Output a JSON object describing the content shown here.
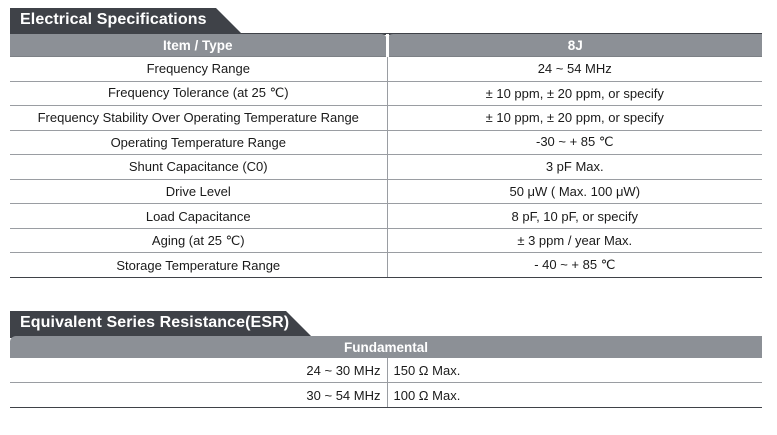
{
  "electrical_specifications": {
    "title": "Electrical Specifications",
    "header": {
      "item_type": "Item / Type",
      "model": "8J"
    },
    "rows": [
      {
        "item": "Frequency Range",
        "value": "24 ~ 54 MHz"
      },
      {
        "item": "Frequency Tolerance (at 25 ℃)",
        "value": "± 10 ppm, ± 20 ppm, or specify"
      },
      {
        "item": "Frequency Stability Over Operating Temperature Range",
        "value": "± 10 ppm, ± 20 ppm, or specify"
      },
      {
        "item": "Operating Temperature Range",
        "value": "-30 ~ + 85 ℃"
      },
      {
        "item": "Shunt Capacitance (C0)",
        "value": "3 pF Max."
      },
      {
        "item": "Drive Level",
        "value": "50 μW ( Max. 100 μW)"
      },
      {
        "item": "Load Capacitance",
        "value": "8 pF, 10 pF, or specify"
      },
      {
        "item": "Aging (at 25 ℃)",
        "value": "± 3 ppm / year Max."
      },
      {
        "item": "Storage Temperature Range",
        "value": "- 40 ~ + 85 ℃"
      }
    ]
  },
  "esr": {
    "title": "Equivalent Series Resistance(ESR)",
    "header": "Fundamental",
    "rows": [
      {
        "frequency": "24 ~ 30 MHz",
        "resistance": "150 Ω Max."
      },
      {
        "frequency": "30 ~ 54 MHz",
        "resistance": "100 Ω Max."
      }
    ]
  },
  "colors": {
    "tab_dark": "#3f4248",
    "header_gray": "#8c9096",
    "rule": "#9a9da2"
  }
}
